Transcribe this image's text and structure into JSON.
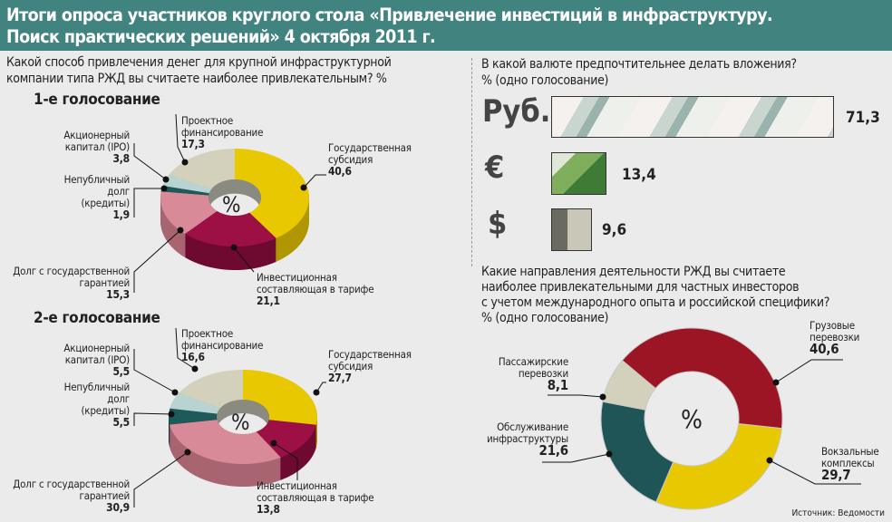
{
  "header": {
    "line1": "Итоги опроса участников круглого стола «Привлечение инвестиций в инфраструктуру.",
    "line2": "Поиск практических решений» 4 октября 2011 г."
  },
  "left": {
    "question_line1": "Какой способ привлечения денег для крупной инфраструктурной",
    "question_line2": "компании типа РЖД вы считаете наиболее привлекательным? %"
  },
  "currency": {
    "question_line1": "В какой валюте предпочтительнее делать вложения?",
    "question_line2": "% (одно голосование)",
    "items": [
      {
        "symbol": "Руб.",
        "value": "71,3"
      },
      {
        "symbol": "€",
        "value": "13,4"
      },
      {
        "symbol": "$",
        "value": "9,6"
      }
    ]
  },
  "directions": {
    "question_line1": "Какие направления деятельности РЖД вы считаете",
    "question_line2": "наиболее привлекательными для частных инвесторов",
    "question_line3": "с учетом международного опыта и российской специфики?",
    "question_line4": "% (одно голосование)"
  },
  "center_symbol": "%",
  "source": "Источник: Ведомости",
  "chart_data": [
    {
      "type": "pie",
      "title": "1-е голосование",
      "slices": [
        {
          "label_l1": "Государственная",
          "label_l2": "субсидия",
          "value": 40.6,
          "display": "40,6",
          "color": "#e8c800",
          "side": "#b09600"
        },
        {
          "label_l1": "Инвестиционная",
          "label_l2": "составляющая в тарифе",
          "value": 21.1,
          "display": "21,1",
          "color": "#9c1045",
          "side": "#6e0a30"
        },
        {
          "label_l1": "Долг с государственной",
          "label_l2": "гарантией",
          "value": 15.3,
          "display": "15,3",
          "color": "#d98a98",
          "side": "#a86470"
        },
        {
          "label_l1": "Непубличный",
          "label_l2": "долг",
          "label_l3": "(кредиты)",
          "value": 1.9,
          "display": "1,9",
          "color": "#1f5a5a",
          "side": "#143c3c"
        },
        {
          "label_l1": "Акционерный",
          "label_l2": "капитал (IPO)",
          "value": 3.8,
          "display": "3,8",
          "color": "#b7d4d2",
          "side": "#8aa6a4"
        },
        {
          "label_l1": "Проектное",
          "label_l2": "финансирование",
          "value": 17.3,
          "display": "17,3",
          "color": "#d3d1bb",
          "side": "#a8a690"
        }
      ]
    },
    {
      "type": "pie",
      "title": "2-е голосование",
      "slices": [
        {
          "label_l1": "Государственная",
          "label_l2": "субсидия",
          "value": 27.7,
          "display": "27,7",
          "color": "#e8c800",
          "side": "#b09600"
        },
        {
          "label_l1": "Инвестиционная",
          "label_l2": "составляющая в тарифе",
          "value": 13.8,
          "display": "13,8",
          "color": "#9c1045",
          "side": "#6e0a30"
        },
        {
          "label_l1": "Долг с государственной",
          "label_l2": "гарантией",
          "value": 30.9,
          "display": "30,9",
          "color": "#d98a98",
          "side": "#a86470"
        },
        {
          "label_l1": "Непубличный",
          "label_l2": "долг",
          "label_l3": "(кредиты)",
          "value": 5.5,
          "display": "5,5",
          "color": "#1f5a5a",
          "side": "#143c3c"
        },
        {
          "label_l1": "Акционерный",
          "label_l2": "капитал (IPO)",
          "value": 5.5,
          "display": "5,5",
          "color": "#b7d4d2",
          "side": "#8aa6a4"
        },
        {
          "label_l1": "Проектное",
          "label_l2": "финансирование",
          "value": 16.6,
          "display": "16,6",
          "color": "#d3d1bb",
          "side": "#a8a690"
        }
      ]
    },
    {
      "type": "pie",
      "title": "",
      "slices": [
        {
          "label_l1": "Грузовые",
          "label_l2": "перевозки",
          "value": 40.6,
          "display": "40,6",
          "color": "#9c1524"
        },
        {
          "label_l1": "Вокзальные",
          "label_l2": "комплексы",
          "value": 29.7,
          "display": "29,7",
          "color": "#e8c800"
        },
        {
          "label_l1": "Обслуживание",
          "label_l2": "инфраструктуры",
          "value": 21.6,
          "display": "21,6",
          "color": "#1f5557"
        },
        {
          "label_l1": "Пассажирские",
          "label_l2": "перевозки",
          "value": 8.1,
          "display": "8,1",
          "color": "#d3d1bb"
        }
      ]
    },
    {
      "type": "bar",
      "title": "В какой валюте предпочтительнее делать вложения?",
      "categories": [
        "Руб.",
        "€",
        "$"
      ],
      "values": [
        71.3,
        13.4,
        9.6
      ]
    }
  ]
}
